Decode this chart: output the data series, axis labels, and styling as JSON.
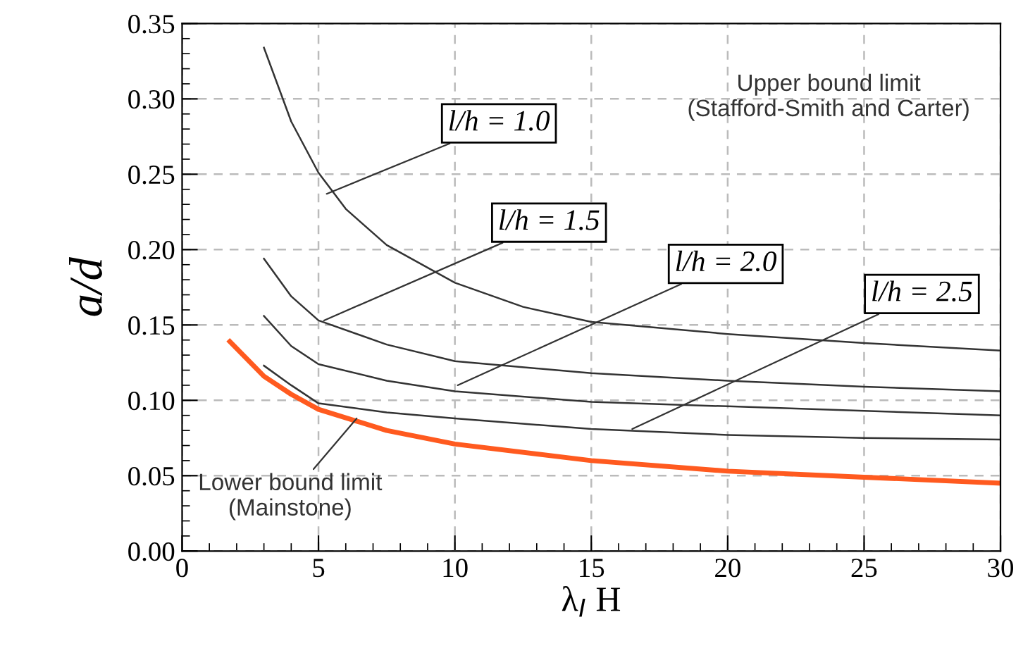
{
  "chart_data": {
    "type": "line",
    "xlabel": "λ$_{I}$ H",
    "ylabel": "a/d",
    "xlim": [
      0,
      30
    ],
    "xticks": [
      0,
      5,
      10,
      15,
      20,
      25,
      30
    ],
    "ylim": [
      0,
      0.35
    ],
    "yticks": [
      {
        "value": 0,
        "label": "0.00"
      },
      {
        "value": 0.05,
        "label": "0.05"
      },
      {
        "value": 0.1,
        "label": "0.10"
      },
      {
        "value": 0.15,
        "label": "0.15"
      },
      {
        "value": 0.2,
        "label": "0.20"
      },
      {
        "value": 0.25,
        "label": "0.25"
      },
      {
        "value": 0.3,
        "label": "0.30"
      },
      {
        "value": 0.35,
        "label": "0.35"
      }
    ],
    "grid": true,
    "line_style": "solid",
    "marker": "none",
    "series": [
      {
        "color": "#333333",
        "x": [
          3,
          4,
          5,
          6,
          7.5,
          10,
          12.5,
          15,
          20,
          25,
          30
        ],
        "values": [
          0.334,
          0.285,
          0.251,
          0.227,
          0.203,
          0.178,
          0.162,
          0.152,
          0.144,
          0.138,
          0.133
        ]
      },
      {
        "color": "#333333",
        "x": [
          3,
          4,
          5,
          7.5,
          10,
          15,
          20,
          25,
          30
        ],
        "values": [
          0.194,
          0.169,
          0.153,
          0.137,
          0.126,
          0.118,
          0.113,
          0.109,
          0.106
        ]
      },
      {
        "color": "#333333",
        "x": [
          3,
          4,
          5,
          7.5,
          10,
          15,
          20,
          25,
          30
        ],
        "values": [
          0.156,
          0.136,
          0.124,
          0.113,
          0.106,
          0.099,
          0.096,
          0.093,
          0.09
        ]
      },
      {
        "color": "#333333",
        "x": [
          3,
          4,
          5,
          7.5,
          10,
          15,
          20,
          25,
          30
        ],
        "values": [
          0.123,
          0.11,
          0.098,
          0.092,
          0.088,
          0.081,
          0.077,
          0.075,
          0.074
        ]
      },
      {
        "color": "#ff5a1f",
        "x": [
          1.75,
          3,
          4,
          5,
          7.5,
          10,
          15,
          20,
          25,
          30
        ],
        "values": [
          0.139,
          0.116,
          0.104,
          0.094,
          0.08,
          0.071,
          0.06,
          0.053,
          0.049,
          0.045
        ]
      }
    ],
    "annotations": [
      {
        "text": "l/h = 1.0",
        "x": 5.3,
        "y": 0.237
      },
      {
        "text": "l/h = 1.5",
        "x": 5.2,
        "y": 0.153
      },
      {
        "text": "l/h = 2.0",
        "x": 10.1,
        "y": 0.11
      },
      {
        "text": "l/h = 2.5",
        "x": 16.5,
        "y": 0.081
      },
      {
        "text": "Lower bound limit\n(Mainstone)",
        "x": 6.4,
        "y": 0.088
      },
      "Upper bound limit\n(Stafford-Smith and Carter)"
    ]
  }
}
